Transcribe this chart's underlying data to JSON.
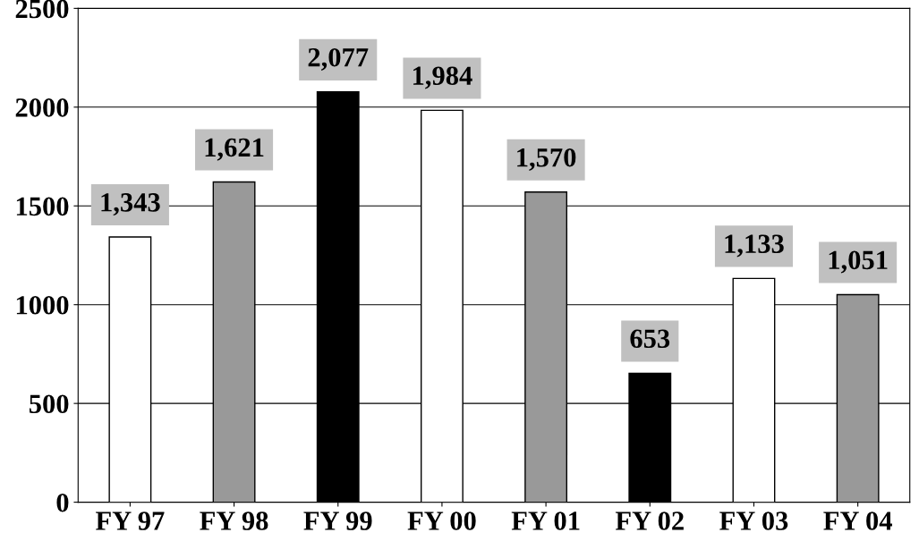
{
  "chart_data": {
    "type": "bar",
    "categories": [
      "FY 97",
      "FY 98",
      "FY 99",
      "FY 00",
      "FY 01",
      "FY 02",
      "FY 03",
      "FY 04"
    ],
    "values": [
      1343,
      1621,
      2077,
      1984,
      1570,
      653,
      1133,
      1051
    ],
    "colors": [
      "#ffffff",
      "#999999",
      "#000000",
      "#ffffff",
      "#999999",
      "#000000",
      "#ffffff",
      "#999999"
    ],
    "value_labels": [
      "1,343",
      "1,621",
      "2,077",
      "1,984",
      "1,570",
      "653",
      "1,133",
      "1,051"
    ],
    "ylim": [
      0,
      2500
    ],
    "yticks": [
      0,
      500,
      1000,
      1500,
      2000,
      2500
    ],
    "grid": "y",
    "legend": false
  }
}
